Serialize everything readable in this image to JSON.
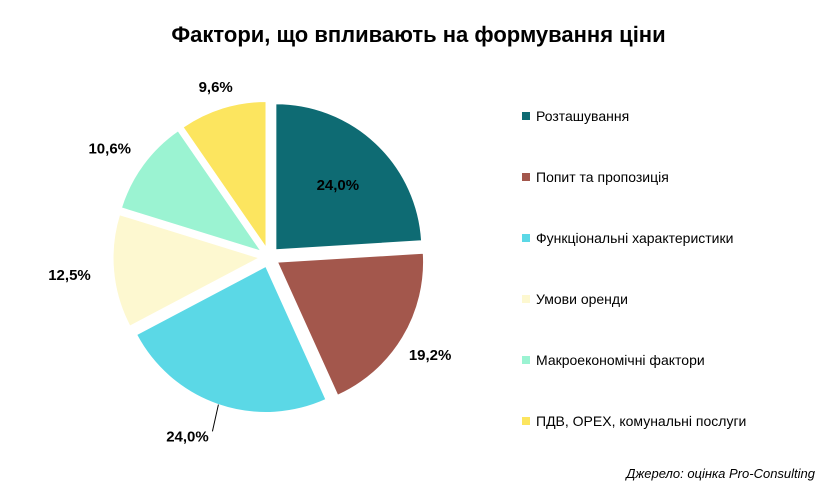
{
  "chart_data": {
    "type": "pie",
    "title": "Фактори, що впливають на формування ціни",
    "categories": [
      "Розташування",
      "Попит та пропозиція",
      "Функціональні характеристики",
      "Умови оренди",
      "Макроекономічні фактори",
      "ПДВ, OPEX, комунальні послуги"
    ],
    "values": [
      24.0,
      19.2,
      24.0,
      12.5,
      10.6,
      9.6
    ],
    "value_labels": [
      "24,0%",
      "19,2%",
      "24,0%",
      "12,5%",
      "10,6%",
      "9,6%"
    ],
    "colors": [
      "#0e6b73",
      "#a3574c",
      "#5bd8e6",
      "#fdf8d0",
      "#9bf3d2",
      "#fce55f"
    ],
    "legend_position": "right",
    "exploded": true
  },
  "source": "Джерело: оцінка Pro-Consulting"
}
